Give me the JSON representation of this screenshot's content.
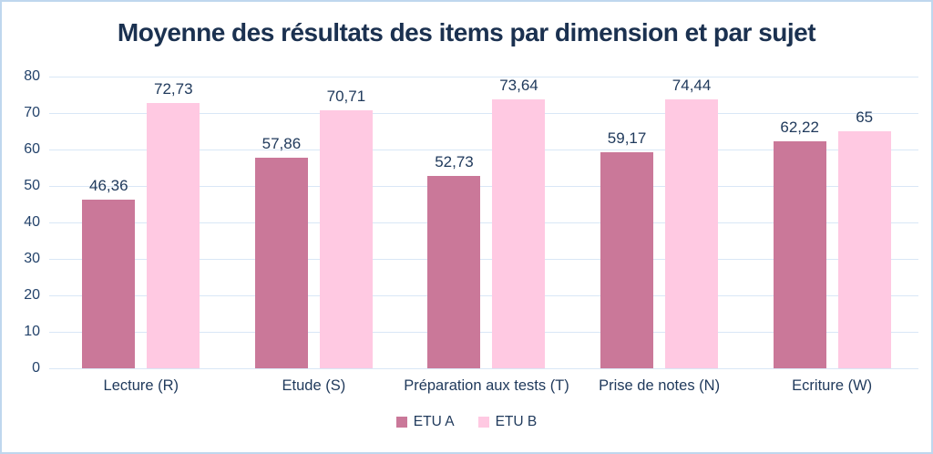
{
  "chart_data": {
    "type": "bar",
    "title": "Moyenne des résultats des items par dimension et par sujet",
    "categories": [
      "Lecture (R)",
      "Etude (S)",
      "Préparation aux tests (T)",
      "Prise de notes (N)",
      "Ecriture (W)"
    ],
    "series": [
      {
        "name": "ETU A",
        "color": "#CA7899",
        "values": [
          46.36,
          57.86,
          52.73,
          59.17,
          62.22
        ],
        "labels": [
          "46,36",
          "57,86",
          "52,73",
          "59,17",
          "62,22"
        ]
      },
      {
        "name": "ETU B",
        "color": "#FFC9E2",
        "values": [
          72.73,
          70.71,
          73.64,
          74.44,
          65
        ],
        "labels": [
          "72,73",
          "70,71",
          "73,64",
          "74,44",
          "65"
        ]
      }
    ],
    "xlabel": "",
    "ylabel": "",
    "ylim": [
      0,
      80
    ],
    "yticks": [
      0,
      10,
      20,
      30,
      40,
      50,
      60,
      70,
      80
    ],
    "grid": true,
    "legend_position": "bottom"
  },
  "colors": {
    "gridline": "#D9E7F6",
    "axis_text": "#24436B",
    "label_text": "#203A5C",
    "title_text": "#1B3150",
    "frame_border": "#BFD7EE",
    "background": "#ffffff"
  }
}
